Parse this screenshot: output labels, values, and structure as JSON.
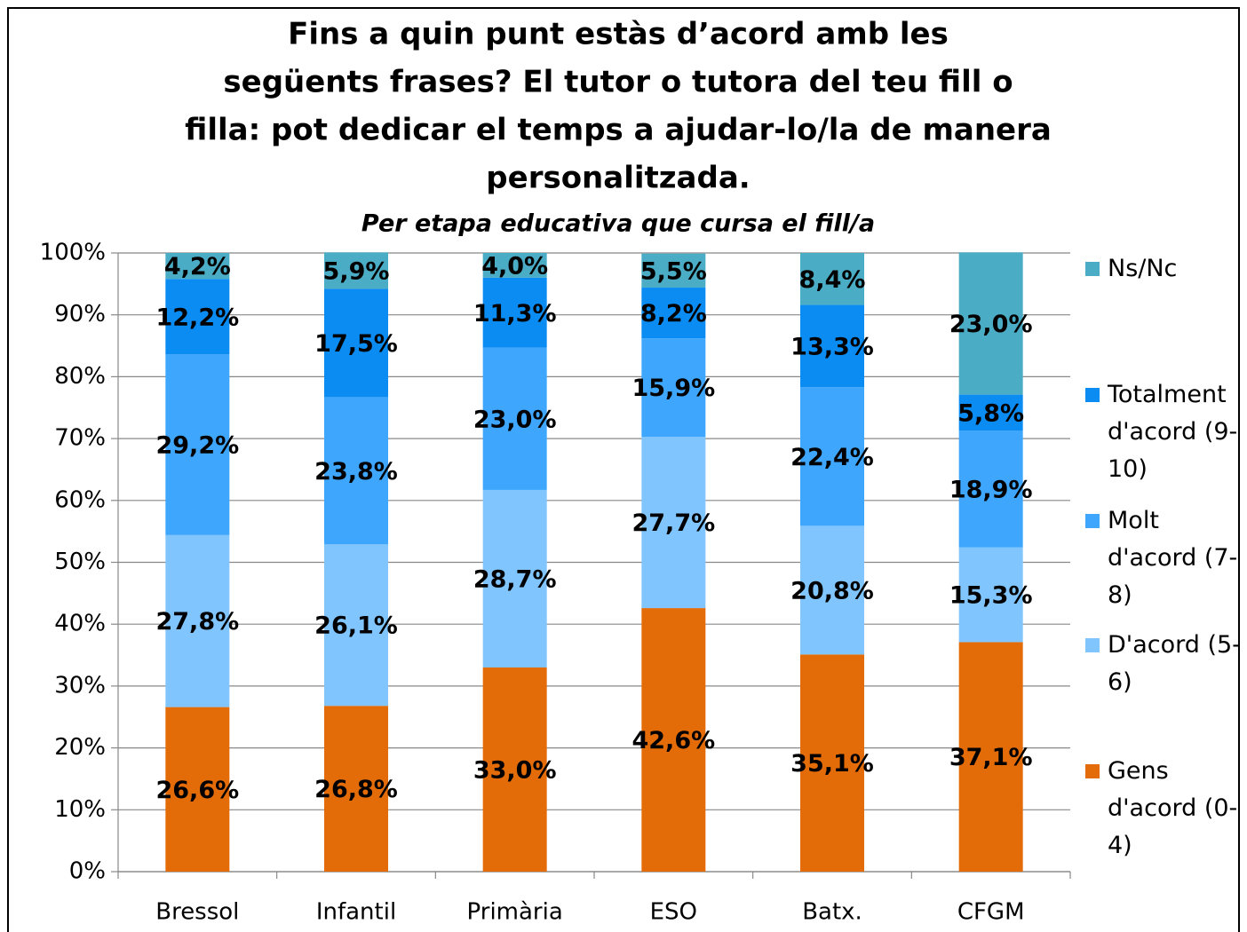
{
  "chart_data": {
    "type": "stacked_bar",
    "title": [
      "Fins a quin punt estàs d’acord amb les",
      "següents frases? El tutor o tutora del teu fill o",
      "filla: pot dedicar el temps a ajudar-lo/la de manera",
      "personalitzada."
    ],
    "subtitle": "Per etapa educativa que cursa el fill/a",
    "categories": [
      "Bressol",
      "Infantil",
      "Primària",
      "ESO",
      "Batx.",
      "CFGM"
    ],
    "series": [
      {
        "name": "Gens d'acord (0-4)",
        "color": "#e36c09",
        "values": [
          26.6,
          26.8,
          33.0,
          42.6,
          35.1,
          37.1
        ],
        "value_labels": [
          "26,6%",
          "26,8%",
          "33,0%",
          "42,6%",
          "35,1%",
          "37,1%"
        ]
      },
      {
        "name": "D'acord (5-6)",
        "color": "#80c5fe",
        "values": [
          27.8,
          26.1,
          28.7,
          27.7,
          20.8,
          15.3
        ],
        "value_labels": [
          "27,8%",
          "26,1%",
          "28,7%",
          "27,7%",
          "20,8%",
          "15,3%"
        ]
      },
      {
        "name": "Molt d'acord (7-8)",
        "color": "#3ea7fd",
        "values": [
          29.2,
          23.8,
          23.0,
          15.9,
          22.4,
          18.9
        ],
        "value_labels": [
          "29,2%",
          "23,8%",
          "23,0%",
          "15,9%",
          "22,4%",
          "18,9%"
        ]
      },
      {
        "name": "Totalment d'acord (9-10)",
        "color": "#0b8cf3",
        "values": [
          12.2,
          17.5,
          11.3,
          8.2,
          13.3,
          5.8
        ],
        "value_labels": [
          "12,2%",
          "17,5%",
          "11,3%",
          "8,2%",
          "13,3%",
          "5,8%"
        ]
      },
      {
        "name": "Ns/Nc",
        "color": "#4bacc6",
        "values": [
          4.2,
          5.9,
          4.0,
          5.5,
          8.4,
          23.0
        ],
        "value_labels": [
          "4,2%",
          "5,9%",
          "4,0%",
          "5,5%",
          "8,4%",
          "23,0%"
        ]
      }
    ],
    "ylim": [
      0,
      100
    ],
    "yticks": [
      {
        "value": 0,
        "label": "0%"
      },
      {
        "value": 10,
        "label": "10%"
      },
      {
        "value": 20,
        "label": "20%"
      },
      {
        "value": 30,
        "label": "30%"
      },
      {
        "value": 40,
        "label": "40%"
      },
      {
        "value": 50,
        "label": "50%"
      },
      {
        "value": 60,
        "label": "60%"
      },
      {
        "value": 70,
        "label": "70%"
      },
      {
        "value": 80,
        "label": "80%"
      },
      {
        "value": 90,
        "label": "90%"
      },
      {
        "value": 100,
        "label": "100%"
      }
    ],
    "grid": true,
    "legend": "right"
  }
}
